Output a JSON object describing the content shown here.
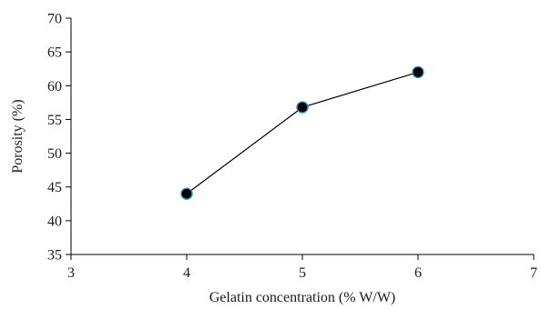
{
  "chart_data": {
    "type": "line",
    "title": "",
    "xlabel": "Gelatin concentration (% W/W)",
    "ylabel": "Porosity (%)",
    "xlim": [
      3,
      7
    ],
    "ylim": [
      35,
      70
    ],
    "x_ticks": [
      3,
      4,
      5,
      6,
      7
    ],
    "y_ticks": [
      35,
      40,
      45,
      50,
      55,
      60,
      65,
      70
    ],
    "grid": false,
    "legend": "none",
    "series": [
      {
        "x": [
          4,
          5,
          6
        ],
        "values": [
          44,
          56.8,
          62
        ],
        "line_color": "#000000",
        "marker_fill": "#000000",
        "marker_edge": "#2f8fc0"
      }
    ]
  }
}
